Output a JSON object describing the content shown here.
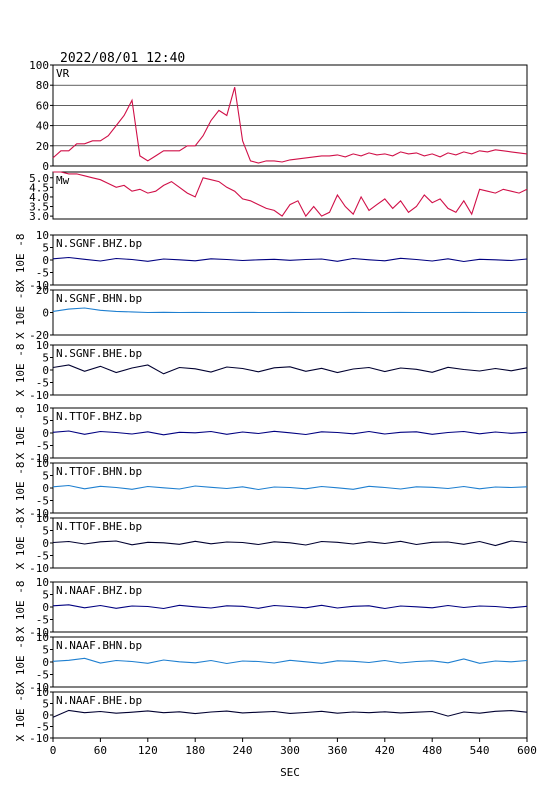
{
  "chart_data": [
    {
      "type": "line",
      "title": "2022/08/01 12:40",
      "grid": true,
      "x": [
        0,
        10,
        20,
        30,
        40,
        50,
        60,
        70,
        80,
        90,
        100,
        110,
        120,
        130,
        140,
        150,
        160,
        170,
        180,
        190,
        200,
        210,
        220,
        230,
        240,
        250,
        260,
        270,
        280,
        290,
        300,
        310,
        320,
        330,
        340,
        350,
        360,
        370,
        380,
        390,
        400,
        410,
        420,
        430,
        440,
        450,
        460,
        470,
        480,
        490,
        500,
        510,
        520,
        530,
        540,
        550,
        560,
        570,
        580,
        590,
        600
      ],
      "xlim": [
        0,
        600
      ],
      "ylim": [
        0,
        100
      ],
      "yticks": [
        0,
        20,
        40,
        60,
        80,
        100
      ],
      "series": [
        {
          "name": "VR",
          "color": "#d01048",
          "values": [
            8,
            15,
            15,
            22,
            22,
            25,
            25,
            30,
            40,
            50,
            65,
            10,
            5,
            10,
            15,
            15,
            15,
            20,
            20,
            30,
            45,
            55,
            50,
            78,
            25,
            5,
            3,
            5,
            5,
            4,
            6,
            7,
            8,
            9,
            10,
            10,
            11,
            9,
            12,
            10,
            13,
            11,
            12,
            10,
            14,
            12,
            13,
            10,
            12,
            9,
            13,
            11,
            14,
            12,
            15,
            14,
            16,
            15,
            14,
            13,
            12
          ]
        }
      ]
    },
    {
      "type": "line",
      "grid": false,
      "x": [
        0,
        10,
        20,
        30,
        40,
        50,
        60,
        70,
        80,
        90,
        100,
        110,
        120,
        130,
        140,
        150,
        160,
        170,
        180,
        190,
        200,
        210,
        220,
        230,
        240,
        250,
        260,
        270,
        280,
        290,
        300,
        310,
        320,
        330,
        340,
        350,
        360,
        370,
        380,
        390,
        400,
        410,
        420,
        430,
        440,
        450,
        460,
        470,
        480,
        490,
        500,
        510,
        520,
        530,
        540,
        550,
        560,
        570,
        580,
        590,
        600
      ],
      "xlim": [
        0,
        600
      ],
      "ylim": [
        2.85,
        5.3
      ],
      "yticks": [
        {
          "value": 3,
          "label": "3.0"
        },
        {
          "value": 3.5,
          "label": "3.5"
        },
        {
          "value": 4,
          "label": "4.0"
        },
        {
          "value": 4.5,
          "label": "4.5"
        },
        {
          "value": 5,
          "label": "5.0"
        }
      ],
      "series": [
        {
          "name": "Mw",
          "color": "#d01048",
          "values": [
            5.3,
            5.3,
            5.2,
            5.2,
            5.1,
            5.0,
            4.9,
            4.7,
            4.5,
            4.6,
            4.3,
            4.4,
            4.2,
            4.3,
            4.6,
            4.8,
            4.5,
            4.2,
            4.0,
            5.0,
            4.9,
            4.8,
            4.5,
            4.3,
            3.9,
            3.8,
            3.6,
            3.4,
            3.3,
            3.0,
            3.6,
            3.8,
            3.0,
            3.5,
            3.0,
            3.2,
            4.1,
            3.5,
            3.1,
            4.0,
            3.3,
            3.6,
            3.9,
            3.4,
            3.8,
            3.2,
            3.5,
            4.1,
            3.7,
            3.9,
            3.4,
            3.2,
            3.8,
            3.1,
            4.4,
            4.3,
            4.2,
            4.4,
            4.3,
            4.2,
            4.4
          ]
        }
      ]
    },
    {
      "type": "line",
      "ylabel": "X 10E -8",
      "x": [
        0,
        20,
        40,
        60,
        80,
        100,
        120,
        140,
        160,
        180,
        200,
        220,
        240,
        260,
        280,
        300,
        320,
        340,
        360,
        380,
        400,
        420,
        440,
        460,
        480,
        500,
        520,
        540,
        560,
        580,
        600
      ],
      "xlim": [
        0,
        600
      ],
      "ylim": [
        -10,
        10
      ],
      "yticks": [
        -10,
        -5,
        0,
        5,
        10
      ],
      "series": [
        {
          "name": "N.SGNF.BHZ.bp",
          "color": "#000080",
          "values": [
            0.5,
            1,
            0.3,
            -0.4,
            0.6,
            0.2,
            -0.5,
            0.4,
            0.1,
            -0.3,
            0.5,
            0.2,
            -0.2,
            0.1,
            0.3,
            -0.1,
            0.2,
            0.4,
            -0.5,
            0.6,
            0.1,
            -0.3,
            0.7,
            0.2,
            -0.4,
            0.5,
            -0.6,
            0.3,
            0.1,
            -0.2,
            0.4
          ]
        }
      ]
    },
    {
      "type": "line",
      "ylabel": "X 10E -8",
      "x": [
        0,
        20,
        40,
        60,
        80,
        100,
        120,
        140,
        160,
        180,
        200,
        220,
        240,
        260,
        280,
        300,
        320,
        340,
        360,
        380,
        400,
        420,
        440,
        460,
        480,
        500,
        520,
        540,
        560,
        580,
        600
      ],
      "xlim": [
        0,
        600
      ],
      "ylim": [
        -20,
        20
      ],
      "yticks": [
        -20,
        0,
        20
      ],
      "series": [
        {
          "name": "N.SGNF.BHN.bp",
          "color": "#1e7fd0",
          "values": [
            1,
            3,
            4,
            2,
            1,
            0.5,
            0,
            0.2,
            0,
            0.1,
            0,
            0,
            0.1,
            0,
            0,
            0.1,
            0,
            0,
            0,
            0.1,
            0,
            0,
            0.1,
            0,
            0,
            0,
            0.1,
            0,
            0,
            0,
            0
          ]
        }
      ]
    },
    {
      "type": "line",
      "ylabel": "X 10E -8",
      "x": [
        0,
        20,
        40,
        60,
        80,
        100,
        120,
        140,
        160,
        180,
        200,
        220,
        240,
        260,
        280,
        300,
        320,
        340,
        360,
        380,
        400,
        420,
        440,
        460,
        480,
        500,
        520,
        540,
        560,
        580,
        600
      ],
      "xlim": [
        0,
        600
      ],
      "ylim": [
        -10,
        10
      ],
      "yticks": [
        -10,
        -5,
        0,
        5,
        10
      ],
      "series": [
        {
          "name": "N.SGNF.BHE.bp",
          "color": "#000030",
          "values": [
            1,
            2,
            -0.5,
            1.5,
            -1,
            0.8,
            2,
            -1.5,
            1,
            0.5,
            -0.8,
            1.2,
            0.6,
            -0.7,
            0.9,
            1.3,
            -0.5,
            0.7,
            -1,
            0.4,
            1,
            -0.6,
            0.8,
            0.3,
            -0.9,
            1.1,
            0.2,
            -0.4,
            0.6,
            -0.3,
            0.9
          ]
        }
      ]
    },
    {
      "type": "line",
      "ylabel": "X 10E -8",
      "x": [
        0,
        20,
        40,
        60,
        80,
        100,
        120,
        140,
        160,
        180,
        200,
        220,
        240,
        260,
        280,
        300,
        320,
        340,
        360,
        380,
        400,
        420,
        440,
        460,
        480,
        500,
        520,
        540,
        560,
        580,
        600
      ],
      "xlim": [
        0,
        600
      ],
      "ylim": [
        -10,
        10
      ],
      "yticks": [
        -10,
        -5,
        0,
        5,
        10
      ],
      "series": [
        {
          "name": "N.TTOF.BHZ.bp",
          "color": "#000080",
          "values": [
            0.3,
            0.8,
            -0.5,
            0.6,
            0.2,
            -0.4,
            0.5,
            -0.7,
            0.3,
            0.1,
            0.6,
            -0.5,
            0.4,
            -0.2,
            0.7,
            0.1,
            -0.6,
            0.5,
            0.2,
            -0.3,
            0.6,
            -0.4,
            0.3,
            0.5,
            -0.5,
            0.2,
            0.6,
            -0.3,
            0.4,
            -0.1,
            0.3
          ]
        }
      ]
    },
    {
      "type": "line",
      "ylabel": "X 10E -8",
      "x": [
        0,
        20,
        40,
        60,
        80,
        100,
        120,
        140,
        160,
        180,
        200,
        220,
        240,
        260,
        280,
        300,
        320,
        340,
        360,
        380,
        400,
        420,
        440,
        460,
        480,
        500,
        520,
        540,
        560,
        580,
        600
      ],
      "xlim": [
        0,
        600
      ],
      "ylim": [
        -10,
        10
      ],
      "yticks": [
        -10,
        -5,
        0,
        5,
        10
      ],
      "series": [
        {
          "name": "N.TTOF.BHN.bp",
          "color": "#1e7fd0",
          "values": [
            0.5,
            1,
            -0.3,
            0.7,
            0.2,
            -0.5,
            0.6,
            0.1,
            -0.4,
            0.8,
            0.3,
            -0.2,
            0.5,
            -0.6,
            0.4,
            0.2,
            -0.3,
            0.6,
            0.1,
            -0.5,
            0.7,
            0.2,
            -0.4,
            0.5,
            0.3,
            -0.2,
            0.6,
            -0.3,
            0.4,
            0.2,
            0.5
          ]
        }
      ]
    },
    {
      "type": "line",
      "ylabel": "X 10E -8",
      "x": [
        0,
        20,
        40,
        60,
        80,
        100,
        120,
        140,
        160,
        180,
        200,
        220,
        240,
        260,
        280,
        300,
        320,
        340,
        360,
        380,
        400,
        420,
        440,
        460,
        480,
        500,
        520,
        540,
        560,
        580,
        600
      ],
      "xlim": [
        0,
        600
      ],
      "ylim": [
        -10,
        10
      ],
      "yticks": [
        -10,
        -5,
        0,
        5,
        10
      ],
      "series": [
        {
          "name": "N.TTOF.BHE.bp",
          "color": "#000030",
          "values": [
            0.2,
            0.6,
            -0.4,
            0.5,
            0.8,
            -0.7,
            0.3,
            0.1,
            -0.5,
            0.7,
            -0.3,
            0.4,
            0.2,
            -0.6,
            0.5,
            0.1,
            -0.8,
            0.6,
            0.3,
            -0.4,
            0.5,
            -0.2,
            0.7,
            -0.6,
            0.3,
            0.4,
            -0.5,
            0.6,
            -1,
            0.8,
            0.2
          ]
        }
      ]
    },
    {
      "type": "line",
      "ylabel": "X 10E -8",
      "x": [
        0,
        20,
        40,
        60,
        80,
        100,
        120,
        140,
        160,
        180,
        200,
        220,
        240,
        260,
        280,
        300,
        320,
        340,
        360,
        380,
        400,
        420,
        440,
        460,
        480,
        500,
        520,
        540,
        560,
        580,
        600
      ],
      "xlim": [
        0,
        600
      ],
      "ylim": [
        -10,
        10
      ],
      "yticks": [
        -10,
        -5,
        0,
        5,
        10
      ],
      "series": [
        {
          "name": "N.NAAF.BHZ.bp",
          "color": "#000080",
          "values": [
            0.5,
            0.9,
            -0.3,
            0.6,
            -0.5,
            0.4,
            0.2,
            -0.6,
            0.7,
            0.1,
            -0.4,
            0.5,
            0.3,
            -0.5,
            0.6,
            0.2,
            -0.3,
            0.7,
            -0.4,
            0.3,
            0.5,
            -0.6,
            0.4,
            0.1,
            -0.3,
            0.6,
            -0.2,
            0.4,
            0.2,
            -0.3,
            0.3
          ]
        }
      ]
    },
    {
      "type": "line",
      "ylabel": "X 10E -8",
      "x": [
        0,
        20,
        40,
        60,
        80,
        100,
        120,
        140,
        160,
        180,
        200,
        220,
        240,
        260,
        280,
        300,
        320,
        340,
        360,
        380,
        400,
        420,
        440,
        460,
        480,
        500,
        520,
        540,
        560,
        580,
        600
      ],
      "xlim": [
        0,
        600
      ],
      "ylim": [
        -10,
        10
      ],
      "yticks": [
        -10,
        -5,
        0,
        5,
        10
      ],
      "series": [
        {
          "name": "N.NAAF.BHN.bp",
          "color": "#1e7fd0",
          "values": [
            0.3,
            0.7,
            1.5,
            -0.4,
            0.6,
            0.2,
            -0.5,
            0.8,
            0.1,
            -0.3,
            0.6,
            -0.6,
            0.4,
            0.2,
            -0.4,
            0.7,
            0.1,
            -0.5,
            0.5,
            0.3,
            -0.2,
            0.6,
            -0.4,
            0.2,
            0.5,
            -0.3,
            1.2,
            -0.5,
            0.4,
            0.1,
            0.6
          ]
        }
      ]
    },
    {
      "type": "line",
      "ylabel": "X 10E -8",
      "x": [
        0,
        20,
        40,
        60,
        80,
        100,
        120,
        140,
        160,
        180,
        200,
        220,
        240,
        260,
        280,
        300,
        320,
        340,
        360,
        380,
        400,
        420,
        440,
        460,
        480,
        500,
        520,
        540,
        560,
        580,
        600
      ],
      "xlim": [
        0,
        600
      ],
      "ylim": [
        -10,
        10
      ],
      "yticks": [
        -10,
        -5,
        0,
        5,
        10
      ],
      "xlabel": "SEC",
      "xticks": [
        0,
        60,
        120,
        180,
        240,
        300,
        360,
        420,
        480,
        540,
        600
      ],
      "series": [
        {
          "name": "N.NAAF.BHE.bp",
          "color": "#000030",
          "values": [
            -1,
            2,
            1,
            1.5,
            0.8,
            1.2,
            1.8,
            1,
            1.4,
            0.6,
            1.3,
            1.7,
            0.9,
            1.2,
            1.5,
            0.7,
            1.1,
            1.6,
            0.8,
            1.3,
            1,
            1.4,
            0.9,
            1.2,
            1.5,
            -0.5,
            1.3,
            0.8,
            1.6,
            1.9,
            1.2
          ]
        }
      ]
    }
  ]
}
